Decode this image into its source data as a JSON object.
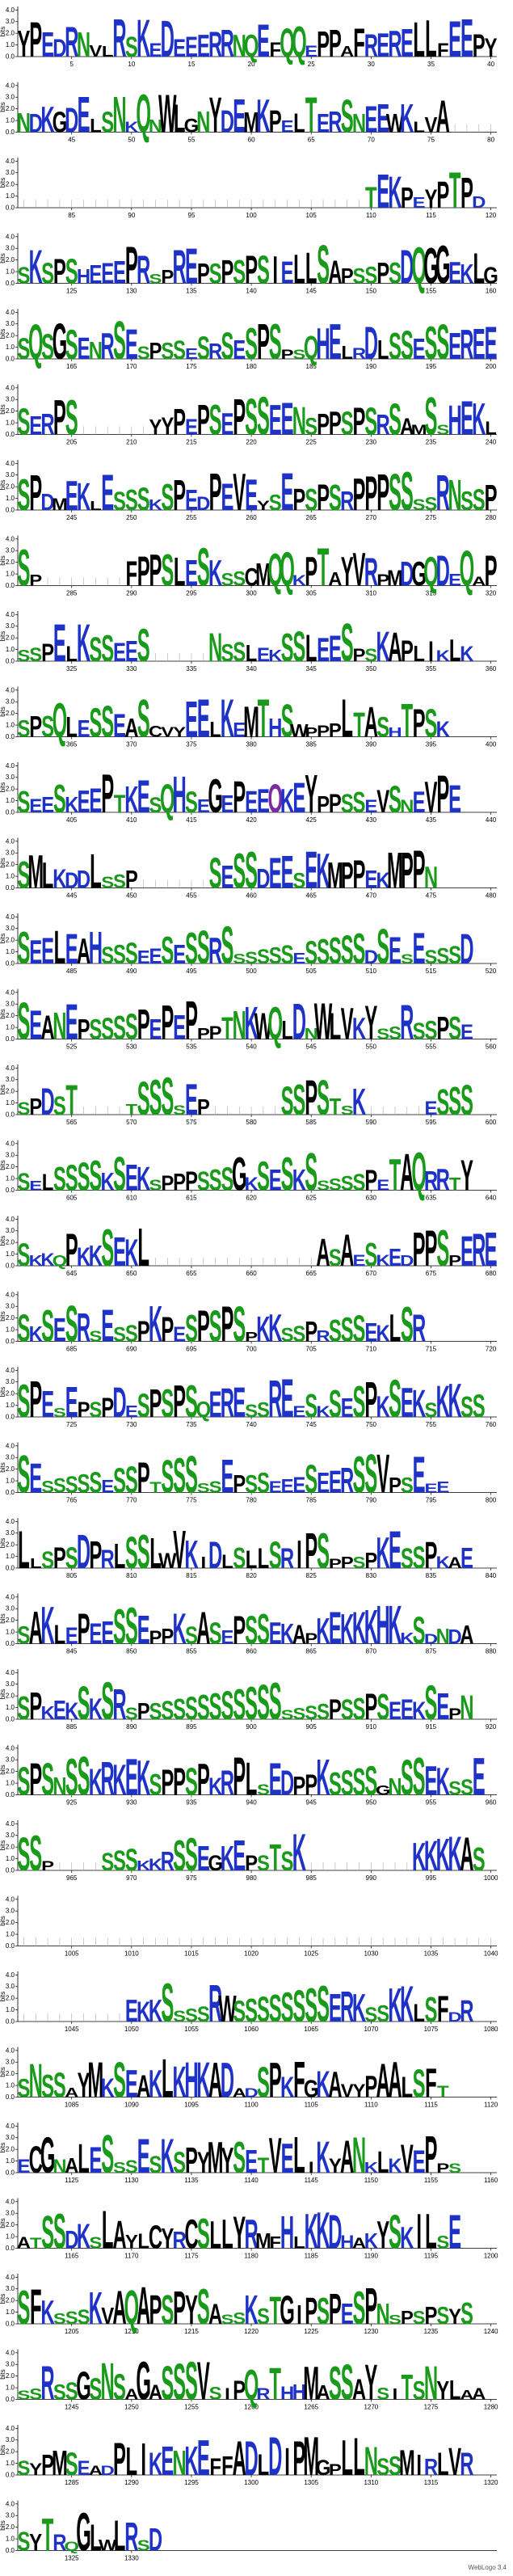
{
  "footer": "WebLogo 3.4",
  "chart_data": {
    "type": "sequence-logo",
    "title": "",
    "ylabel": "bits",
    "ylim": [
      0,
      4.3
    ],
    "yticks": [
      "0.0",
      "1.0",
      "2.0",
      "3.0",
      "4.0"
    ],
    "positions_per_row": 40,
    "total_positions": 1333,
    "colors": {
      "hydrophobic": "#000000",
      "polar": "#1a9a1a",
      "charged": "#1f32c8",
      "other": "#7b2aa0"
    },
    "row_tick_labels": [
      [
        "5",
        "10",
        "15",
        "20",
        "25",
        "30",
        "35",
        "40"
      ],
      [
        "45",
        "50",
        "55",
        "60",
        "65",
        "70",
        "75",
        "80"
      ],
      [
        "85",
        "90",
        "95",
        "100",
        "105",
        "110",
        "115",
        "120"
      ],
      [
        "125",
        "130",
        "135",
        "140",
        "145",
        "150",
        "155",
        "160"
      ],
      [
        "165",
        "170",
        "175",
        "180",
        "185",
        "190",
        "195",
        "200"
      ],
      [
        "205",
        "210",
        "215",
        "220",
        "225",
        "230",
        "235",
        "240"
      ],
      [
        "245",
        "250",
        "255",
        "260",
        "265",
        "270",
        "275",
        "280"
      ],
      [
        "285",
        "290",
        "295",
        "300",
        "305",
        "310",
        "315",
        "320"
      ],
      [
        "325",
        "330",
        "335",
        "340",
        "345",
        "350",
        "355",
        "360"
      ],
      [
        "365",
        "370",
        "375",
        "380",
        "385",
        "390",
        "395",
        "400"
      ],
      [
        "405",
        "410",
        "415",
        "420",
        "425",
        "430",
        "435",
        "440"
      ],
      [
        "445",
        "450",
        "455",
        "460",
        "465",
        "470",
        "475",
        "480"
      ],
      [
        "485",
        "490",
        "495",
        "500",
        "505",
        "510",
        "515",
        "520"
      ],
      [
        "525",
        "530",
        "535",
        "540",
        "545",
        "550",
        "555",
        "560"
      ],
      [
        "565",
        "570",
        "575",
        "580",
        "585",
        "590",
        "595",
        "600"
      ],
      [
        "605",
        "610",
        "615",
        "620",
        "625",
        "630",
        "635",
        "640"
      ],
      [
        "645",
        "650",
        "655",
        "660",
        "665",
        "670",
        "675",
        "680"
      ],
      [
        "685",
        "690",
        "695",
        "700",
        "705",
        "710",
        "715",
        "720"
      ],
      [
        "725",
        "730",
        "735",
        "740",
        "745",
        "750",
        "755",
        "760"
      ],
      [
        "765",
        "770",
        "775",
        "780",
        "785",
        "790",
        "795",
        "800"
      ],
      [
        "805",
        "810",
        "815",
        "820",
        "825",
        "830",
        "835",
        "840"
      ],
      [
        "845",
        "850",
        "855",
        "860",
        "865",
        "870",
        "875",
        "880"
      ],
      [
        "885",
        "890",
        "895",
        "900",
        "905",
        "910",
        "915",
        "920"
      ],
      [
        "925",
        "930",
        "935",
        "940",
        "945",
        "950",
        "955",
        "960"
      ],
      [
        "965",
        "970",
        "975",
        "980",
        "985",
        "990",
        "995",
        "1000"
      ],
      [
        "1005",
        "1010",
        "1015",
        "1020",
        "1025",
        "1030",
        "1035",
        "1040"
      ],
      [
        "1045",
        "1050",
        "1055",
        "1060",
        "1065",
        "1070",
        "1075",
        "1080"
      ],
      [
        "1085",
        "1090",
        "1095",
        "1100",
        "1105",
        "1110",
        "1115",
        "1120"
      ],
      [
        "1125",
        "1130",
        "1135",
        "1140",
        "1145",
        "1150",
        "1155",
        "1160"
      ],
      [
        "1165",
        "1170",
        "1175",
        "1180",
        "1185",
        "1190",
        "1195",
        "1200"
      ],
      [
        "1205",
        "1210",
        "1215",
        "1220",
        "1225",
        "1230",
        "1235",
        "1240"
      ],
      [
        "1245",
        "1250",
        "1255",
        "1260",
        "1265",
        "1270",
        "1275",
        "1280"
      ],
      [
        "1285",
        "1290",
        "1295",
        "1300",
        "1305",
        "1310",
        "1315",
        "1320"
      ],
      [
        "1325",
        "1330"
      ]
    ],
    "rows": [
      "YPEDRNVLRSKEDEEERRNQEFQQEPPAFRERELLFEEPYKT",
      "NDKGDELSNKQNWLGNYDEMKPELTERSNEEWKLVAiiiii",
      "iiiiiiiiiiiiiiiiiiiiiiiiiiiiiTEKPEYPTPD",
      "SKSPSHEEEPRSPREPSPSPSIELLSAPSSPSDQGGEKLGS",
      "SQSGSENRSESPSSESRSESPSPSQHELRDLSSESSEREERT",
      "SERPSiiiiiiYYPEPSEPSSEENSPPSPSRSAMSSHEKLSS",
      "SPDMEKLESSSKSPEDPEVEYSEPSPSRPPPSSSSRNSSPSSS",
      "SPiiiiiiiFPPSLESKSSCMQQKPTAYVRPMDGQDEQAPD",
      "SSPELKSSEESiiiiiNSSLEKSSLEESPSKAPLIKLK",
      "SPSQLESSEASCVYEELKEMTHSWPPPLTASHTPSK",
      "SEESKEEPTKESQHSEGEPEEOKEYPPSSEVSNEVPE",
      "SMLKDDLSSPiiiiiiSESSDEESEKMPPEKMPPN",
      "SEELEAHSSSEESESSRSSSSSSESSSSSDSESESSSD",
      "SEANEPSSSSPEPEPPPTNKWQLDNWLVKYSSRSSPSE",
      "SPDSTiiiiTSSSSEPiiiiiiSSPSTSKiiiiiESSS",
      "SELSSSSKSEKSPPPSSSGKSESKSSSSSPETAQRRTY",
      "SKKQPKKSEKLiiiiiiiiiiiiiiASAESKEDPPSPEREESS",
      "SKSESRSESSPKPESPSPSPKKSSPRSSSEKLSR",
      "SPESEPSPDESPSPSQERESSREESKSESPKSEKSKKSS",
      "SESSSSSESSPTSSSSSEPSSEEESEERSSVPSEEE",
      "LLSPSDPRLSSLWVKIDLSLLSRIPSPPSPKESSPKAE",
      "SAKLEPEESSEPPKSASEPSSEKAPKEKKKHKKSDNDA",
      "SPKEKSKSRSPSSSSSSSSSSSSSSSPSSPSEEKSEPN",
      "SPSNSSKRKEKSPPSPKRPLSEDPPKSSSSGNSSEKSSE",
      "SSPiiiiSSSKKRSSEGKEPSTSKiiiiiiiiiKKKKAS",
      "iiiiiiiiiiiiiiiiiiiiiiiiiiiiiiiiiiiiiiiiii",
      "iiiiiiiiiEKKSSSSRWSSSSSSSSERKSSKKLSFDR",
      "SNSSAYMKSEAKLKHKADADSPKFGKAVYPAALSFT",
      "ECGNALESSSESKSPYMYSETVELIKYANKLKVEPPS",
      "ATSSDKSLAYLCYRCSLLYRMFHLKKDHAKYSKILSE",
      "SFKSSSKVAQAPSPYSASSKSTGIPSPESPNSPSPSYS",
      "SSRSSGSNSAGASSSVSIPQRTHHMASSAYSITSNYLAA",
      "SYPMSEADPLIKENKEFFADLDIPMGPLLNSSMIRLVR",
      "SYTRQGLWLRSD"
    ]
  }
}
